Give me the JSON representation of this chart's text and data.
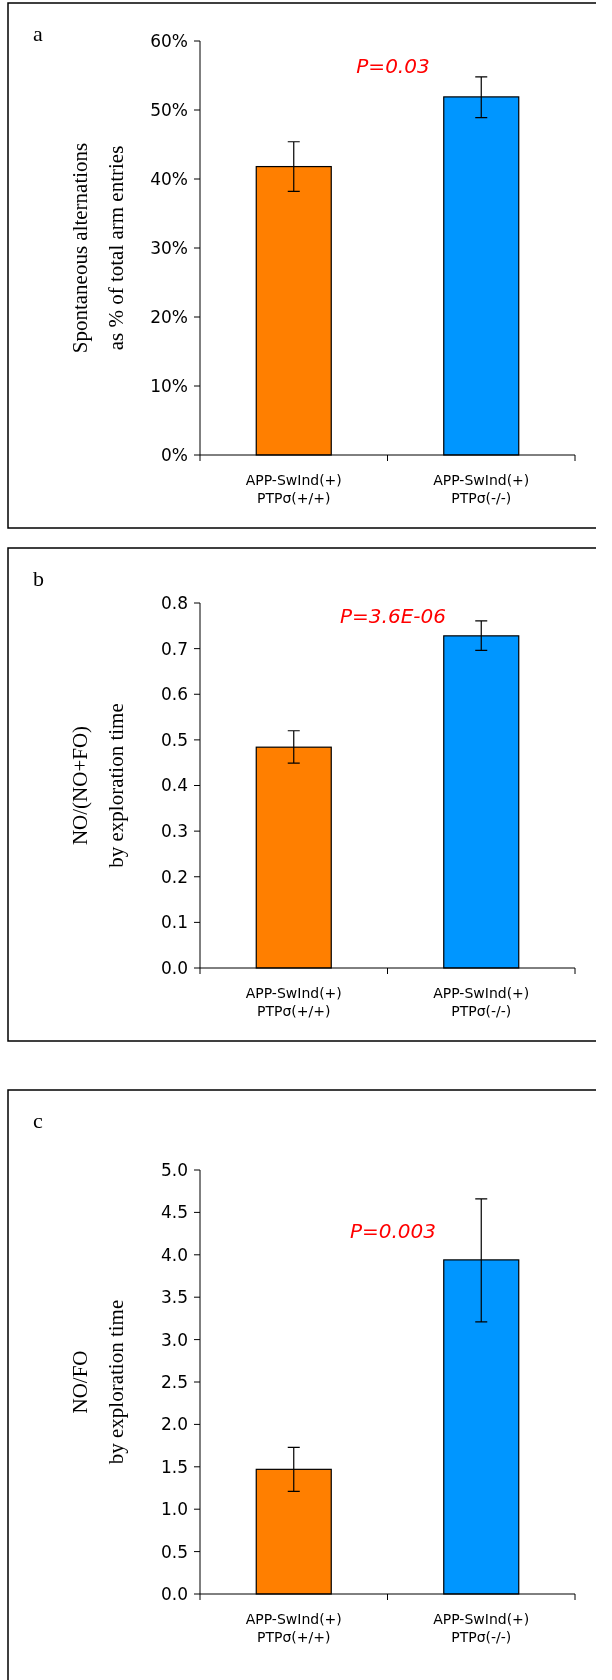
{
  "chart_data": [
    {
      "type": "bar",
      "title": "a",
      "ylabel": "Spontaneous alternations\nas % of total arm entries",
      "categories": [
        "APP-SwInd(+)\nPTPσ(+/+)",
        "APP-SwInd(+)\nPTPσ(-/-)"
      ],
      "values": [
        41.8,
        51.9
      ],
      "colors": [
        "#ff7f00",
        "#0096ff"
      ],
      "errors": [
        [
          38.2,
          45.4
        ],
        [
          48.9,
          54.8
        ]
      ],
      "ylim": [
        0,
        60
      ],
      "yticks": [
        {
          "value": 0,
          "label": "0%"
        },
        {
          "value": 10,
          "label": "10%"
        },
        {
          "value": 20,
          "label": "20%"
        },
        {
          "value": 30,
          "label": "30%"
        },
        {
          "value": 40,
          "label": "40%"
        },
        {
          "value": 50,
          "label": "50%"
        },
        {
          "value": 60,
          "label": "60%"
        }
      ],
      "annotations": [
        "P=0.03"
      ]
    },
    {
      "type": "bar",
      "title": "b",
      "ylabel": "NO/(NO+FO)\nby exploration time",
      "categories": [
        "APP-SwInd(+)\nPTPσ(+/+)",
        "APP-SwInd(+)\nPTPσ(-/-)"
      ],
      "values": [
        0.484,
        0.728
      ],
      "colors": [
        "#ff7f00",
        "#0096ff"
      ],
      "errors": [
        [
          0.449,
          0.52
        ],
        [
          0.696,
          0.761
        ]
      ],
      "ylim": [
        0,
        0.8
      ],
      "yticks": [
        {
          "value": 0,
          "label": "0.0"
        },
        0.1,
        0.2,
        0.3,
        0.4,
        0.5,
        0.6,
        0.7,
        0.8
      ],
      "annotations": [
        "P=3.6E-06"
      ]
    },
    {
      "type": "bar",
      "title": "c",
      "ylabel": "NO/FO\nby exploration time",
      "categories": [
        "APP-SwInd(+)\nPTPσ(+/+)",
        "APP-SwInd(+)\nPTPσ(-/-)"
      ],
      "values": [
        1.47,
        3.94
      ],
      "colors": [
        "#ff7f00",
        "#0096ff"
      ],
      "errors": [
        [
          1.21,
          1.73
        ],
        [
          3.21,
          4.66
        ]
      ],
      "ylim": [
        0,
        5
      ],
      "yticks": [
        {
          "value": 0,
          "label": "0.0"
        },
        0.5,
        {
          "value": 1,
          "label": "1.0"
        },
        1.5,
        {
          "value": 2,
          "label": "2.0"
        },
        2.5,
        {
          "value": 3,
          "label": "3.0"
        },
        3.5,
        {
          "value": 4,
          "label": "4.0"
        },
        4.5,
        {
          "value": 5,
          "label": "5.0"
        }
      ],
      "annotations": [
        "P=0.003"
      ]
    }
  ]
}
